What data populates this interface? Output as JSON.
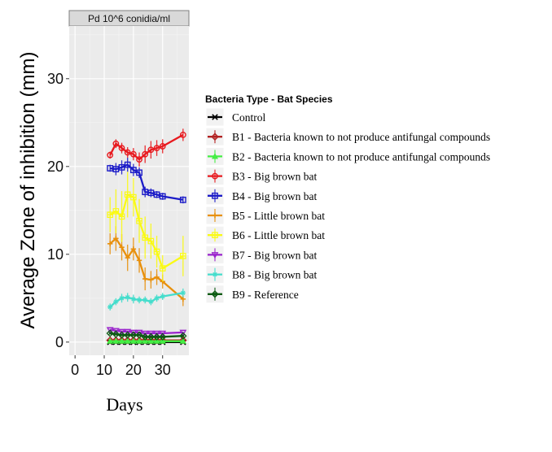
{
  "chart_data": {
    "type": "line",
    "facet_label": "Pd 10^6 conidia/ml",
    "xlabel": "Days",
    "ylabel": "Average Zone of inhibition (mm)",
    "xlim": [
      -2,
      39
    ],
    "ylim": [
      -1.5,
      36
    ],
    "x_ticks": [
      0,
      10,
      20,
      30
    ],
    "y_ticks": [
      0,
      10,
      20,
      30
    ],
    "x": [
      12,
      14,
      16,
      18,
      20,
      22,
      24,
      26,
      28,
      30,
      37
    ],
    "legend_title": "Bacteria Type - Bat Species",
    "legend_position": "right",
    "series": [
      {
        "name": "Control",
        "color": "#000000",
        "marker": "x",
        "values": [
          0,
          0,
          0,
          0,
          0,
          0,
          0,
          0,
          0,
          0,
          0
        ],
        "err": [
          0,
          0,
          0,
          0,
          0,
          0,
          0,
          0,
          0,
          0,
          0
        ]
      },
      {
        "name": "B1 - Bacteria known to not produce antifungal compounds",
        "color": "#b22222",
        "marker": "diamond-open",
        "values": [
          0.2,
          0.2,
          0.2,
          0.2,
          0.2,
          0.2,
          0.2,
          0.2,
          0.2,
          0.2,
          0.2
        ],
        "err": [
          0,
          0,
          0,
          0,
          0,
          0,
          0,
          0,
          0,
          0,
          0
        ]
      },
      {
        "name": "B2 - Bacteria known to not produce antifungal compounds",
        "color": "#44ee44",
        "marker": "triangle",
        "values": [
          0.1,
          0.1,
          0.1,
          0.1,
          0.1,
          0.1,
          0.1,
          0.1,
          0.1,
          0.1,
          0.1
        ],
        "err": [
          0,
          0,
          0,
          0,
          0,
          0,
          0,
          0,
          0,
          0,
          0
        ]
      },
      {
        "name": "B3 - Big brown bat",
        "color": "#e8191e",
        "marker": "circle-open",
        "values": [
          21.3,
          22.6,
          22.1,
          21.6,
          21.4,
          20.8,
          21.4,
          21.9,
          22.1,
          22.3,
          23.6
        ],
        "err": [
          0.4,
          0.5,
          0.6,
          0.6,
          0.7,
          0.8,
          1.0,
          1.0,
          0.9,
          0.8,
          0.7
        ]
      },
      {
        "name": "B4 - Big brown bat",
        "color": "#1c1cc8",
        "marker": "square-open",
        "values": [
          19.8,
          19.7,
          19.9,
          20.2,
          19.6,
          19.3,
          17.1,
          17.0,
          16.8,
          16.6,
          16.2
        ],
        "err": [
          0.4,
          0.7,
          0.8,
          0.8,
          0.7,
          0.6,
          0.6,
          0.5,
          0.4,
          0.4,
          0.4
        ]
      },
      {
        "name": "B5 - Little brown bat",
        "color": "#e8900c",
        "marker": "plus",
        "values": [
          11.2,
          11.8,
          10.8,
          9.6,
          10.6,
          9.3,
          7.2,
          7.1,
          7.4,
          6.9,
          4.9
        ],
        "err": [
          1.2,
          1.4,
          1.5,
          1.5,
          1.3,
          1.4,
          1.3,
          1.0,
          0.9,
          0.8,
          0.8
        ]
      },
      {
        "name": "B6 - Little brown bat",
        "color": "#fafa14",
        "marker": "box",
        "values": [
          14.5,
          14.9,
          14.3,
          16.8,
          16.5,
          13.8,
          11.9,
          11.5,
          10.3,
          8.4,
          9.8
        ],
        "err": [
          2.0,
          2.5,
          2.9,
          2.6,
          2.2,
          2.5,
          2.4,
          2.0,
          1.8,
          1.5,
          2.3
        ]
      },
      {
        "name": "B7 - Big brown bat",
        "color": "#9922cc",
        "marker": "triangle-down-open",
        "values": [
          1.4,
          1.3,
          1.2,
          1.2,
          1.1,
          1.1,
          1.0,
          1.0,
          1.0,
          1.0,
          1.1
        ],
        "err": [
          0.1,
          0.1,
          0.1,
          0.1,
          0.1,
          0.1,
          0.1,
          0.1,
          0.1,
          0.1,
          0.1
        ]
      },
      {
        "name": "B8 - Big brown bat",
        "color": "#44ddcc",
        "marker": "asterisk",
        "values": [
          4.0,
          4.6,
          5.0,
          5.1,
          4.9,
          4.8,
          4.8,
          4.6,
          5.0,
          5.2,
          5.6
        ],
        "err": [
          0.4,
          0.4,
          0.5,
          0.5,
          0.5,
          0.4,
          0.4,
          0.4,
          0.4,
          0.4,
          0.5
        ]
      },
      {
        "name": "B9 - Reference",
        "color": "#0c5a12",
        "marker": "diamond-x",
        "values": [
          1.0,
          0.9,
          0.8,
          0.8,
          0.8,
          0.8,
          0.6,
          0.6,
          0.6,
          0.6,
          0.7
        ],
        "err": [
          0.1,
          0.1,
          0.1,
          0.1,
          0.1,
          0.1,
          0.1,
          0.1,
          0.1,
          0.1,
          0.1
        ]
      }
    ]
  }
}
